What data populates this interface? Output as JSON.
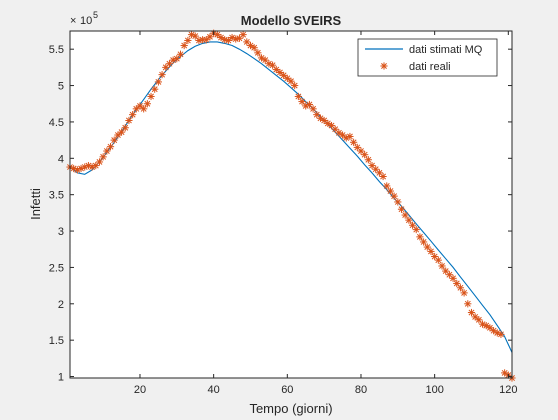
{
  "chart_data": {
    "type": "line",
    "title": "Modello SVEIRS",
    "xlabel": "Tempo (giorni)",
    "ylabel": "Infetti",
    "y_exponent_label": "10",
    "y_exponent_power": "5",
    "y_scale": 100000,
    "xlim": [
      1,
      121
    ],
    "ylim": [
      0.98,
      5.75
    ],
    "x_ticks": [
      20,
      40,
      60,
      80,
      100,
      120
    ],
    "y_ticks": [
      1,
      1.5,
      2,
      2.5,
      3,
      3.5,
      4,
      4.5,
      5,
      5.5
    ],
    "y_tick_labels": [
      "1",
      "1.5",
      "2",
      "2.5",
      "3",
      "3.5",
      "4",
      "4.5",
      "5",
      "5.5"
    ],
    "grid": false,
    "legend_position": "top-right",
    "colors": {
      "fitted": "#0072bd",
      "real": "#d95319",
      "background": "#f0f0f0",
      "axes": "#ffffff"
    },
    "series": [
      {
        "name": "dati stimati MQ",
        "style": "line",
        "x": [
          1,
          3,
          5,
          7,
          9,
          11,
          13,
          15,
          17,
          19,
          21,
          23,
          25,
          27,
          29,
          31,
          33,
          35,
          37,
          39,
          41,
          43,
          45,
          47,
          49,
          51,
          53,
          55,
          57,
          59,
          61,
          63,
          65,
          67,
          69,
          71,
          73,
          75,
          77,
          79,
          81,
          83,
          85,
          87,
          89,
          91,
          93,
          95,
          97,
          99,
          101,
          103,
          105,
          107,
          109,
          111,
          113,
          115,
          117,
          119,
          121
        ],
        "values": [
          3.88,
          3.8,
          3.78,
          3.84,
          3.95,
          4.08,
          4.22,
          4.37,
          4.52,
          4.67,
          4.81,
          4.95,
          5.08,
          5.2,
          5.31,
          5.4,
          5.48,
          5.54,
          5.58,
          5.6,
          5.6,
          5.58,
          5.55,
          5.5,
          5.44,
          5.37,
          5.3,
          5.22,
          5.14,
          5.06,
          4.97,
          4.88,
          4.78,
          4.68,
          4.57,
          4.47,
          4.36,
          4.25,
          4.14,
          4.03,
          3.91,
          3.8,
          3.68,
          3.57,
          3.45,
          3.34,
          3.22,
          3.1,
          2.98,
          2.86,
          2.74,
          2.62,
          2.5,
          2.37,
          2.24,
          2.11,
          1.98,
          1.85,
          1.7,
          1.55,
          1.33
        ]
      },
      {
        "name": "dati reali",
        "style": "asterisk",
        "x": [
          1,
          2,
          3,
          4,
          5,
          6,
          7,
          8,
          9,
          10,
          11,
          12,
          13,
          14,
          15,
          16,
          17,
          18,
          19,
          20,
          21,
          22,
          23,
          24,
          25,
          26,
          27,
          28,
          29,
          30,
          31,
          32,
          33,
          34,
          35,
          36,
          37,
          38,
          39,
          40,
          41,
          42,
          43,
          44,
          45,
          46,
          47,
          48,
          49,
          50,
          51,
          52,
          53,
          54,
          55,
          56,
          57,
          58,
          59,
          60,
          61,
          62,
          63,
          64,
          65,
          66,
          67,
          68,
          69,
          70,
          71,
          72,
          73,
          74,
          75,
          76,
          77,
          78,
          79,
          80,
          81,
          82,
          83,
          84,
          85,
          86,
          87,
          88,
          89,
          90,
          91,
          92,
          93,
          94,
          95,
          96,
          97,
          98,
          99,
          100,
          101,
          102,
          103,
          104,
          105,
          106,
          107,
          108,
          109,
          110,
          111,
          112,
          113,
          114,
          115,
          116,
          117,
          118,
          119,
          120,
          121
        ],
        "values": [
          3.88,
          3.86,
          3.84,
          3.86,
          3.88,
          3.9,
          3.88,
          3.9,
          3.95,
          4.02,
          4.1,
          4.16,
          4.25,
          4.32,
          4.36,
          4.42,
          4.52,
          4.6,
          4.68,
          4.72,
          4.68,
          4.75,
          4.85,
          4.95,
          5.05,
          5.15,
          5.25,
          5.3,
          5.35,
          5.37,
          5.43,
          5.55,
          5.62,
          5.7,
          5.68,
          5.62,
          5.63,
          5.63,
          5.67,
          5.72,
          5.7,
          5.66,
          5.63,
          5.62,
          5.66,
          5.64,
          5.65,
          5.7,
          5.6,
          5.55,
          5.52,
          5.45,
          5.38,
          5.35,
          5.3,
          5.28,
          5.22,
          5.18,
          5.14,
          5.1,
          5.06,
          5.0,
          4.85,
          4.78,
          4.72,
          4.74,
          4.68,
          4.6,
          4.55,
          4.52,
          4.48,
          4.45,
          4.4,
          4.35,
          4.32,
          4.28,
          4.3,
          4.22,
          4.15,
          4.1,
          4.05,
          3.98,
          3.9,
          3.85,
          3.8,
          3.75,
          3.62,
          3.55,
          3.48,
          3.4,
          3.3,
          3.22,
          3.15,
          3.08,
          3.02,
          2.92,
          2.85,
          2.78,
          2.72,
          2.65,
          2.6,
          2.52,
          2.45,
          2.4,
          2.35,
          2.28,
          2.22,
          2.15,
          2.0,
          1.88,
          1.82,
          1.78,
          1.72,
          1.7,
          1.67,
          1.63,
          1.6,
          1.58,
          1.05,
          1.02,
          0.98
        ]
      }
    ]
  }
}
